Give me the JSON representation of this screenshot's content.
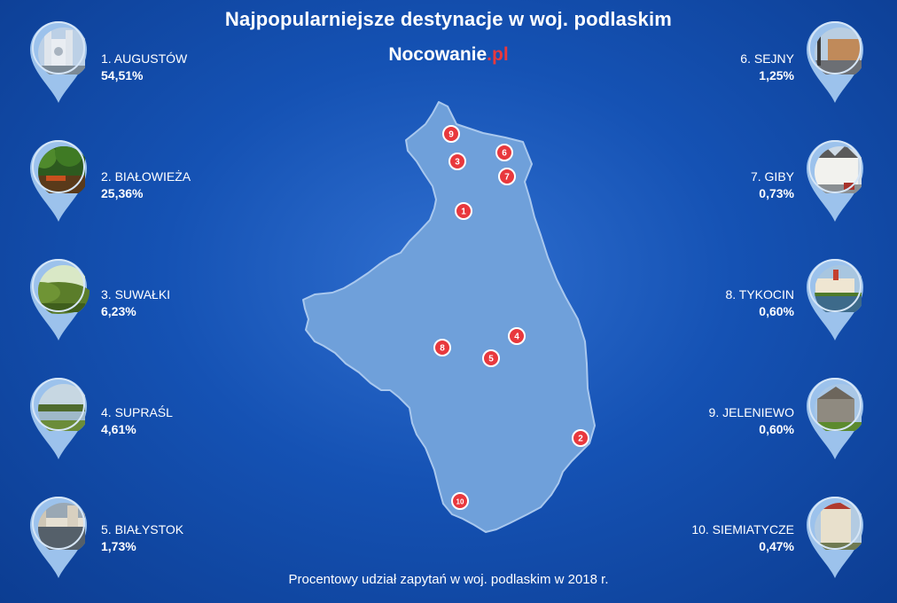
{
  "title": "Najpopularniejsze destynacje w woj. podlaskim",
  "brand": {
    "name": "Nocowanie",
    "tld": ".pl"
  },
  "footer": "Procentowy udział zapytań w woj. podlaskim w 2018 r.",
  "colors": {
    "accent": "#e8383d",
    "map_fill": "#6fa0da",
    "pin": "#9cc2ec"
  },
  "chart_data": {
    "type": "table",
    "title": "Najpopularniejsze destynacje w woj. podlaskim",
    "note": "Procentowy udział zapytań w woj. podlaskim w 2018 r.",
    "rows": [
      {
        "rank": "1",
        "label": "1. AUGUSTÓW",
        "value_text": "54,51%",
        "value": 54.51,
        "photo": "church-towers"
      },
      {
        "rank": "2",
        "label": "2. BIAŁOWIEŻA",
        "value_text": "25,36%",
        "value": 25.36,
        "photo": "forest"
      },
      {
        "rank": "3",
        "label": "3. SUWAŁKI",
        "value_text": "6,23%",
        "value": 6.23,
        "photo": "green-hills"
      },
      {
        "rank": "4",
        "label": "4. SUPRAŚL",
        "value_text": "4,61%",
        "value": 4.61,
        "photo": "lake-meadow"
      },
      {
        "rank": "5",
        "label": "5. BIAŁYSTOK",
        "value_text": "1,73%",
        "value": 1.73,
        "photo": "city-street"
      },
      {
        "rank": "6",
        "label": "6. SEJNY",
        "value_text": "1,25%",
        "value": 1.25,
        "photo": "town-square"
      },
      {
        "rank": "7",
        "label": "7. GIBY",
        "value_text": "0,73%",
        "value": 0.73,
        "photo": "white-houses"
      },
      {
        "rank": "8",
        "label": "8. TYKOCIN",
        "value_text": "0,60%",
        "value": 0.6,
        "photo": "castle-pond"
      },
      {
        "rank": "9",
        "label": "9. JELENIEWO",
        "value_text": "0,60%",
        "value": 0.6,
        "photo": "old-building"
      },
      {
        "rank": "10",
        "label": "10. SIEMIATYCZE",
        "value_text": "0,47%",
        "value": 0.47,
        "photo": "tall-building"
      }
    ]
  }
}
